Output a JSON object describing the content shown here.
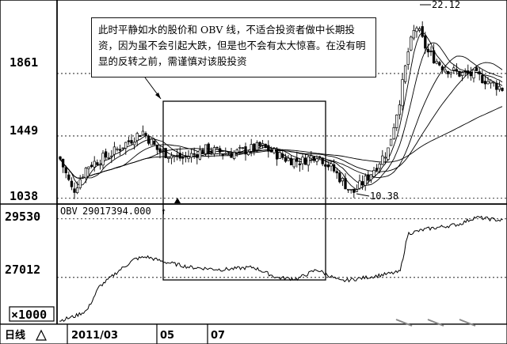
{
  "chart_data": {
    "type": "candlestick",
    "price_panel": {
      "y_ticks": [
        "1861",
        "1449",
        "1038"
      ],
      "tick_values": [
        1861,
        1449,
        1038
      ],
      "ylim": [
        1000,
        2330
      ],
      "annotation_high": "22.12",
      "annotation_low": "10.38",
      "low_value": 1038,
      "high_value": 2212
    },
    "obv_panel": {
      "label": "OBV",
      "value_text": "29017394.000",
      "y_ticks": [
        "29530",
        "27012"
      ],
      "tick_values": [
        29530,
        27012
      ],
      "ylim": [
        25000,
        30100
      ],
      "scale_label": "×1000"
    },
    "x_axis": {
      "period_label": "日线",
      "tick_labels": [
        "2011/03",
        "05",
        "07"
      ]
    },
    "note": "此时平静如水的股价和 OBV 线，不适合投资者做中长期投资，因为虽不会引起大跌，但是也不会有太大惊喜。在没有明显的反转之前，需谨慎对该股投资",
    "highlight": "sideways range",
    "colors": {
      "ink": "#000000",
      "background": "#ffffff"
    }
  }
}
